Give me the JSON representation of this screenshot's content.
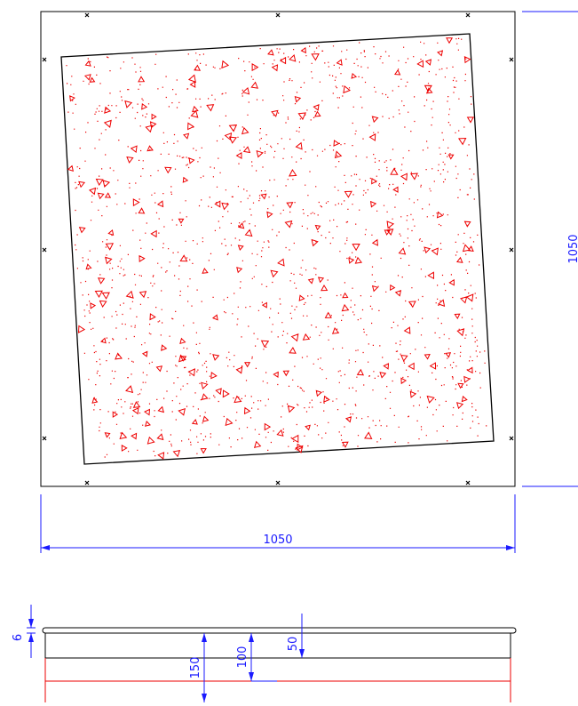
{
  "dimensions": {
    "plan_height": "1050",
    "plan_width": "1050",
    "plate_thickness": "6",
    "depth_150": "150",
    "depth_100": "100",
    "depth_50": "50"
  }
}
